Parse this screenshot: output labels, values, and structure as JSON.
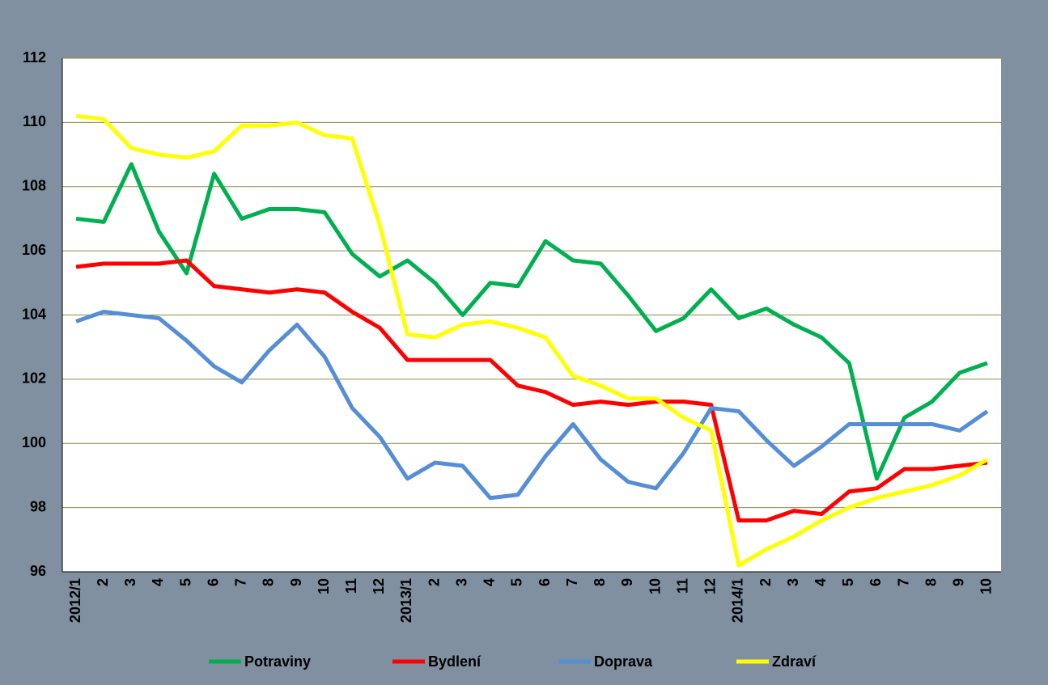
{
  "chart_data": {
    "type": "line",
    "categories": [
      "2012/1",
      "2",
      "3",
      "4",
      "5",
      "6",
      "7",
      "8",
      "9",
      "10",
      "11",
      "12",
      "2013/1",
      "2",
      "3",
      "4",
      "5",
      "6",
      "7",
      "8",
      "9",
      "10",
      "11",
      "12",
      "2014/1",
      "2",
      "3",
      "4",
      "5",
      "6",
      "7",
      "8",
      "9",
      "10"
    ],
    "series": [
      {
        "name": "Potraviny",
        "color": "#00b050",
        "values": [
          107.0,
          106.9,
          108.7,
          106.6,
          105.3,
          108.4,
          107.0,
          107.3,
          107.3,
          107.2,
          105.9,
          105.2,
          105.7,
          105.0,
          104.0,
          105.0,
          104.9,
          106.3,
          105.7,
          105.6,
          104.6,
          103.5,
          103.9,
          104.8,
          103.9,
          104.2,
          103.7,
          103.3,
          102.5,
          98.9,
          100.8,
          101.3,
          102.2,
          102.5
        ]
      },
      {
        "name": "Bydlení",
        "color": "#ff0000",
        "values": [
          105.5,
          105.6,
          105.6,
          105.6,
          105.7,
          104.9,
          104.8,
          104.7,
          104.8,
          104.7,
          104.1,
          103.6,
          102.6,
          102.6,
          102.6,
          102.6,
          101.8,
          101.6,
          101.2,
          101.3,
          101.2,
          101.3,
          101.3,
          101.2,
          97.6,
          97.6,
          97.9,
          97.8,
          98.5,
          98.6,
          99.2,
          99.2,
          99.3,
          99.4
        ]
      },
      {
        "name": "Doprava",
        "color": "#558ed5",
        "values": [
          103.8,
          104.1,
          104.0,
          103.9,
          103.2,
          102.4,
          101.9,
          102.9,
          103.7,
          102.7,
          101.1,
          100.2,
          98.9,
          99.4,
          99.3,
          98.3,
          98.4,
          99.6,
          100.6,
          99.5,
          98.8,
          98.6,
          99.7,
          101.1,
          101.0,
          100.1,
          99.3,
          99.9,
          100.6,
          100.6,
          100.6,
          100.6,
          100.4,
          101.0
        ]
      },
      {
        "name": "Zdraví",
        "color": "#ffff00",
        "values": [
          110.2,
          110.1,
          109.2,
          109.0,
          108.9,
          109.1,
          109.9,
          109.9,
          110.0,
          109.6,
          109.5,
          106.8,
          103.4,
          103.3,
          103.7,
          103.8,
          103.6,
          103.3,
          102.1,
          101.8,
          101.4,
          101.4,
          100.8,
          100.4,
          96.2,
          96.7,
          97.1,
          97.6,
          98.0,
          98.3,
          98.5,
          98.7,
          99.0,
          99.5
        ]
      }
    ],
    "ylim": [
      96,
      112
    ],
    "yticks": [
      96,
      98,
      100,
      102,
      104,
      106,
      108,
      110,
      112
    ],
    "grid": true,
    "legend": "bottom"
  }
}
